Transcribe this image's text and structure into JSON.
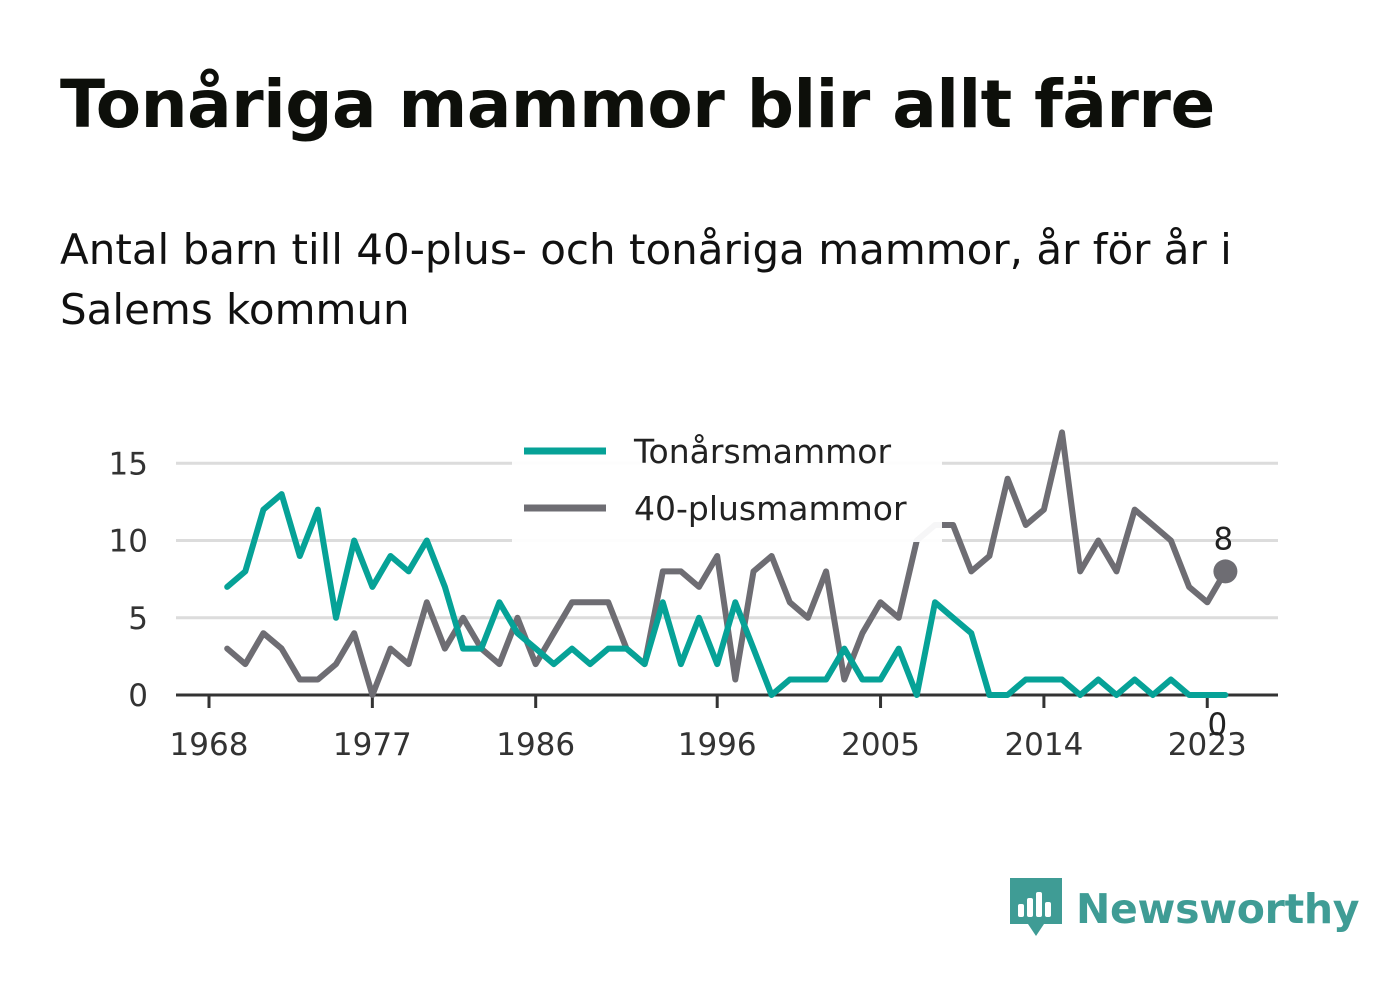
{
  "title": "Tonåriga mammor blir allt färre",
  "subtitle": "Antal barn till 40-plus- och tonåriga mammor, år för år i Salems kommun",
  "brand": "Newsworthy",
  "colors": {
    "teen": "#06a297",
    "plus40": "#6e6d73",
    "grid": "#dcdcdc",
    "axis": "#333333",
    "brand": "#3f9c95"
  },
  "chart_data": {
    "type": "line",
    "title": "Tonåriga mammor blir allt färre",
    "subtitle": "Antal barn till 40-plus- och tonåriga mammor, år för år i Salems kommun",
    "xlabel": "",
    "ylabel": "",
    "xlim": [
      1968,
      2025
    ],
    "ylim": [
      0,
      17
    ],
    "x_ticks": [
      "1968",
      "1977",
      "1986",
      "1996",
      "2005",
      "2014",
      "2023"
    ],
    "y_ticks": [
      "0",
      "5",
      "10",
      "15"
    ],
    "grid": true,
    "legend_position": "top-center",
    "x": [
      1969,
      1970,
      1971,
      1972,
      1973,
      1974,
      1975,
      1976,
      1977,
      1978,
      1979,
      1980,
      1981,
      1982,
      1983,
      1984,
      1985,
      1986,
      1987,
      1988,
      1989,
      1990,
      1991,
      1992,
      1993,
      1994,
      1995,
      1996,
      1997,
      1998,
      1999,
      2000,
      2001,
      2002,
      2003,
      2004,
      2005,
      2006,
      2007,
      2008,
      2009,
      2010,
      2011,
      2012,
      2013,
      2014,
      2015,
      2016,
      2017,
      2018,
      2019,
      2020,
      2021,
      2022,
      2023,
      2024
    ],
    "series": [
      {
        "name": "Tonårsmammor",
        "color": "#06a297",
        "values": [
          7,
          8,
          12,
          13,
          9,
          12,
          5,
          10,
          7,
          9,
          8,
          10,
          7,
          3,
          3,
          6,
          4,
          3,
          2,
          3,
          2,
          3,
          3,
          2,
          6,
          2,
          5,
          2,
          6,
          3,
          0,
          1,
          1,
          1,
          3,
          1,
          1,
          3,
          0,
          6,
          5,
          4,
          0,
          0,
          1,
          1,
          1,
          0,
          1,
          0,
          1,
          0,
          1,
          0,
          0,
          0
        ],
        "end_label": "0"
      },
      {
        "name": "40-plusmammor",
        "color": "#6e6d73",
        "values": [
          3,
          2,
          4,
          3,
          1,
          1,
          2,
          4,
          0,
          3,
          2,
          6,
          3,
          5,
          3,
          2,
          5,
          2,
          4,
          6,
          6,
          6,
          3,
          2,
          8,
          8,
          7,
          9,
          1,
          8,
          9,
          6,
          5,
          8,
          1,
          4,
          6,
          5,
          10,
          11,
          11,
          8,
          9,
          14,
          11,
          12,
          17,
          8,
          10,
          8,
          12,
          11,
          10,
          7,
          6,
          8
        ],
        "end_label": "8"
      }
    ]
  }
}
